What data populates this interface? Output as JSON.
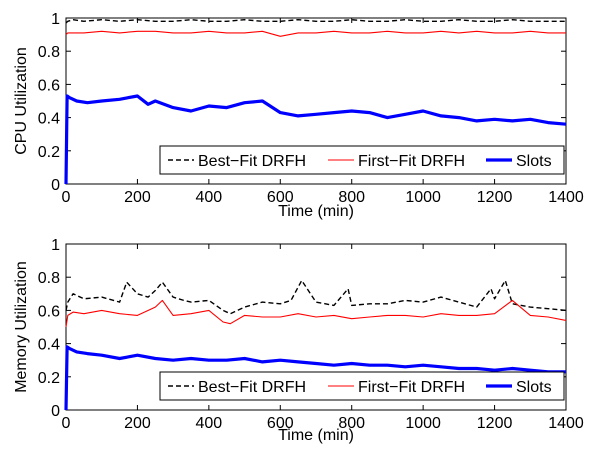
{
  "chart_data": [
    {
      "type": "line",
      "title": "",
      "xlabel": "Time (min)",
      "ylabel": "CPU Utilization",
      "xlim": [
        0,
        1400
      ],
      "ylim": [
        0,
        1
      ],
      "xticks": [
        "0",
        "200",
        "400",
        "600",
        "800",
        "1000",
        "1200",
        "1400"
      ],
      "yticks": [
        "0",
        "0.2",
        "0.4",
        "0.6",
        "0.8",
        "1"
      ],
      "grid": false,
      "legend_position": "bottom-right",
      "series": [
        {
          "name": "Best−Fit DRFH",
          "color": "#000000",
          "style": "dashed",
          "x": [
            0,
            5,
            20,
            50,
            100,
            150,
            200,
            250,
            300,
            350,
            400,
            450,
            500,
            550,
            600,
            650,
            700,
            750,
            800,
            850,
            900,
            950,
            1000,
            1050,
            1100,
            1150,
            1200,
            1250,
            1300,
            1350,
            1400
          ],
          "y": [
            0.97,
            0.98,
            0.99,
            0.98,
            0.99,
            0.98,
            0.99,
            0.98,
            0.98,
            0.99,
            0.98,
            0.98,
            0.99,
            0.98,
            0.98,
            0.99,
            0.98,
            0.98,
            0.99,
            0.98,
            0.98,
            0.99,
            0.98,
            0.98,
            0.99,
            0.98,
            0.98,
            0.99,
            0.98,
            0.98,
            0.98
          ]
        },
        {
          "name": "First−Fit DRFH",
          "color": "#ff0000",
          "style": "solid",
          "x": [
            0,
            5,
            20,
            50,
            100,
            150,
            200,
            250,
            300,
            350,
            400,
            450,
            500,
            550,
            600,
            650,
            700,
            750,
            800,
            850,
            900,
            950,
            1000,
            1050,
            1100,
            1150,
            1200,
            1250,
            1300,
            1350,
            1400
          ],
          "y": [
            0.9,
            0.91,
            0.91,
            0.91,
            0.92,
            0.91,
            0.92,
            0.92,
            0.91,
            0.91,
            0.92,
            0.91,
            0.91,
            0.92,
            0.89,
            0.91,
            0.91,
            0.92,
            0.91,
            0.91,
            0.92,
            0.91,
            0.91,
            0.92,
            0.91,
            0.92,
            0.91,
            0.91,
            0.92,
            0.91,
            0.91
          ]
        },
        {
          "name": "Slots",
          "color": "#0000ff",
          "style": "solid-thick",
          "x": [
            0,
            3,
            10,
            30,
            60,
            100,
            150,
            200,
            230,
            250,
            300,
            350,
            400,
            450,
            500,
            550,
            600,
            650,
            700,
            750,
            800,
            850,
            900,
            950,
            1000,
            1050,
            1100,
            1150,
            1200,
            1250,
            1300,
            1350,
            1400
          ],
          "y": [
            0.0,
            0.53,
            0.52,
            0.5,
            0.49,
            0.5,
            0.51,
            0.53,
            0.48,
            0.5,
            0.46,
            0.44,
            0.47,
            0.46,
            0.49,
            0.5,
            0.43,
            0.41,
            0.42,
            0.43,
            0.44,
            0.43,
            0.4,
            0.42,
            0.44,
            0.41,
            0.4,
            0.38,
            0.39,
            0.38,
            0.39,
            0.37,
            0.36
          ]
        }
      ]
    },
    {
      "type": "line",
      "title": "",
      "xlabel": "Time (min)",
      "ylabel": "Memory Utilization",
      "xlim": [
        0,
        1400
      ],
      "ylim": [
        0,
        1
      ],
      "xticks": [
        "0",
        "200",
        "400",
        "600",
        "800",
        "1000",
        "1200",
        "1400"
      ],
      "yticks": [
        "0",
        "0.2",
        "0.4",
        "0.6",
        "0.8",
        "1"
      ],
      "grid": false,
      "legend_position": "bottom-right",
      "series": [
        {
          "name": "Best−Fit DRFH",
          "color": "#000000",
          "style": "dashed",
          "x": [
            0,
            5,
            20,
            50,
            100,
            150,
            170,
            200,
            230,
            250,
            270,
            300,
            330,
            350,
            400,
            440,
            460,
            500,
            550,
            600,
            630,
            660,
            700,
            750,
            790,
            800,
            850,
            900,
            950,
            1000,
            1050,
            1100,
            1150,
            1190,
            1200,
            1230,
            1250,
            1300,
            1350,
            1400
          ],
          "y": [
            0.6,
            0.65,
            0.7,
            0.67,
            0.68,
            0.65,
            0.77,
            0.7,
            0.68,
            0.72,
            0.77,
            0.68,
            0.66,
            0.65,
            0.66,
            0.6,
            0.58,
            0.62,
            0.65,
            0.64,
            0.66,
            0.78,
            0.65,
            0.63,
            0.73,
            0.63,
            0.64,
            0.64,
            0.66,
            0.65,
            0.68,
            0.65,
            0.62,
            0.73,
            0.67,
            0.78,
            0.64,
            0.62,
            0.61,
            0.6
          ]
        },
        {
          "name": "First−Fit DRFH",
          "color": "#ff0000",
          "style": "solid",
          "x": [
            0,
            5,
            20,
            50,
            100,
            150,
            200,
            250,
            270,
            300,
            350,
            400,
            440,
            460,
            500,
            550,
            600,
            650,
            700,
            750,
            800,
            850,
            900,
            950,
            1000,
            1050,
            1100,
            1150,
            1200,
            1250,
            1300,
            1350,
            1400
          ],
          "y": [
            0.5,
            0.57,
            0.59,
            0.58,
            0.6,
            0.58,
            0.57,
            0.62,
            0.66,
            0.57,
            0.58,
            0.6,
            0.53,
            0.52,
            0.57,
            0.56,
            0.56,
            0.58,
            0.56,
            0.57,
            0.55,
            0.56,
            0.57,
            0.57,
            0.56,
            0.58,
            0.57,
            0.57,
            0.58,
            0.66,
            0.57,
            0.56,
            0.54
          ]
        },
        {
          "name": "Slots",
          "color": "#0000ff",
          "style": "solid-thick",
          "x": [
            0,
            3,
            10,
            30,
            60,
            100,
            150,
            200,
            250,
            300,
            350,
            400,
            450,
            500,
            550,
            600,
            650,
            700,
            750,
            800,
            850,
            900,
            950,
            1000,
            1050,
            1100,
            1150,
            1200,
            1250,
            1300,
            1350,
            1400
          ],
          "y": [
            0.0,
            0.38,
            0.37,
            0.35,
            0.34,
            0.33,
            0.31,
            0.33,
            0.31,
            0.3,
            0.31,
            0.3,
            0.3,
            0.31,
            0.29,
            0.3,
            0.29,
            0.28,
            0.27,
            0.28,
            0.27,
            0.27,
            0.26,
            0.27,
            0.26,
            0.25,
            0.25,
            0.24,
            0.25,
            0.24,
            0.23,
            0.23
          ]
        }
      ]
    }
  ]
}
